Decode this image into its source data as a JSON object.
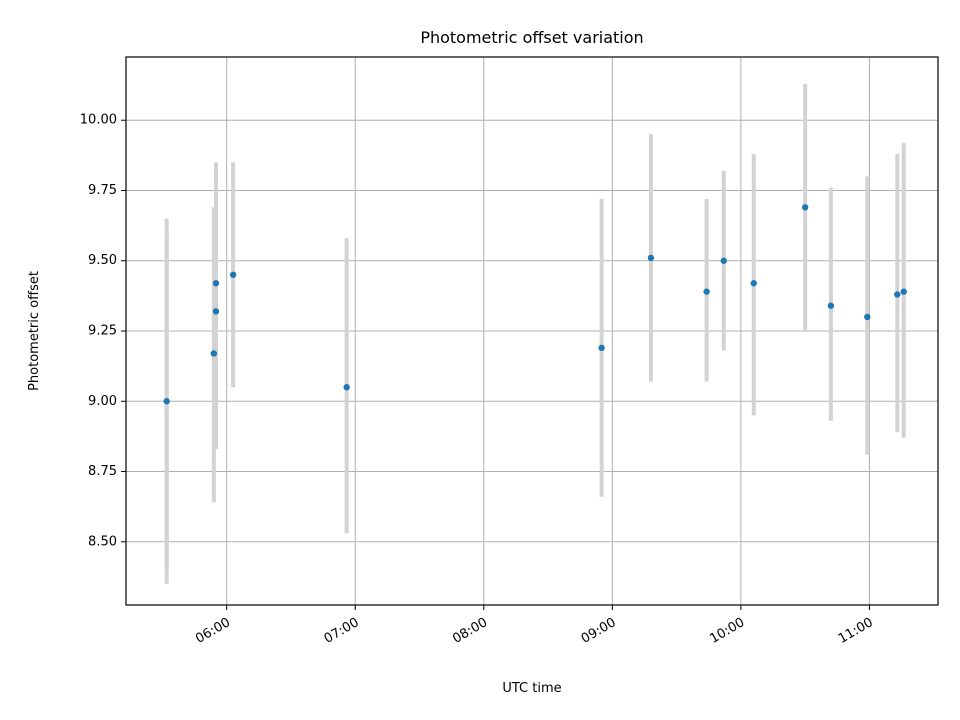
{
  "chart_data": {
    "type": "scatter",
    "title": "Photometric offset variation",
    "xlabel": "UTC time",
    "ylabel": "Photometric offset",
    "x_unit": "time",
    "xlim": [
      "05:13",
      "11:32"
    ],
    "ylim": [
      8.275,
      10.225
    ],
    "x_ticks": [
      "06:00",
      "07:00",
      "08:00",
      "09:00",
      "10:00",
      "11:00"
    ],
    "y_ticks": [
      "8.50",
      "8.75",
      "9.00",
      "9.25",
      "9.50",
      "9.75",
      "10.00"
    ],
    "grid": true,
    "errorbar_color": "#d3d3d3",
    "marker_color": "#1f77b4",
    "points": [
      {
        "time": "05:32",
        "y": 9.0,
        "err_low": 8.35,
        "err_high": 9.65
      },
      {
        "time": "05:32",
        "y": null,
        "err_low": 8.4,
        "err_high": 9.6
      },
      {
        "time": "05:55",
        "y": 9.42,
        "err_low": 8.99,
        "err_high": 9.85
      },
      {
        "time": "05:55",
        "y": 9.32,
        "err_low": 8.83,
        "err_high": 9.69
      },
      {
        "time": "05:54",
        "y": 9.17,
        "err_low": 8.64,
        "err_high": 9.69
      },
      {
        "time": "06:03",
        "y": 9.45,
        "err_low": 9.05,
        "err_high": 9.85
      },
      {
        "time": "06:56",
        "y": 9.05,
        "err_low": 8.53,
        "err_high": 9.58
      },
      {
        "time": "08:55",
        "y": 9.19,
        "err_low": 8.66,
        "err_high": 9.72
      },
      {
        "time": "09:18",
        "y": 9.51,
        "err_low": 9.07,
        "err_high": 9.95
      },
      {
        "time": "09:44",
        "y": 9.39,
        "err_low": 9.07,
        "err_high": 9.72
      },
      {
        "time": "09:52",
        "y": 9.5,
        "err_low": 9.18,
        "err_high": 9.82
      },
      {
        "time": "10:06",
        "y": 9.42,
        "err_low": 8.95,
        "err_high": 9.88
      },
      {
        "time": "10:30",
        "y": 9.69,
        "err_low": 9.25,
        "err_high": 10.13
      },
      {
        "time": "10:42",
        "y": 9.34,
        "err_low": 8.93,
        "err_high": 9.76
      },
      {
        "time": "10:59",
        "y": 9.3,
        "err_low": 8.81,
        "err_high": 9.8
      },
      {
        "time": "11:13",
        "y": 9.38,
        "err_low": 8.89,
        "err_high": 9.88
      },
      {
        "time": "11:16",
        "y": 9.39,
        "err_low": 8.87,
        "err_high": 9.92
      }
    ]
  }
}
